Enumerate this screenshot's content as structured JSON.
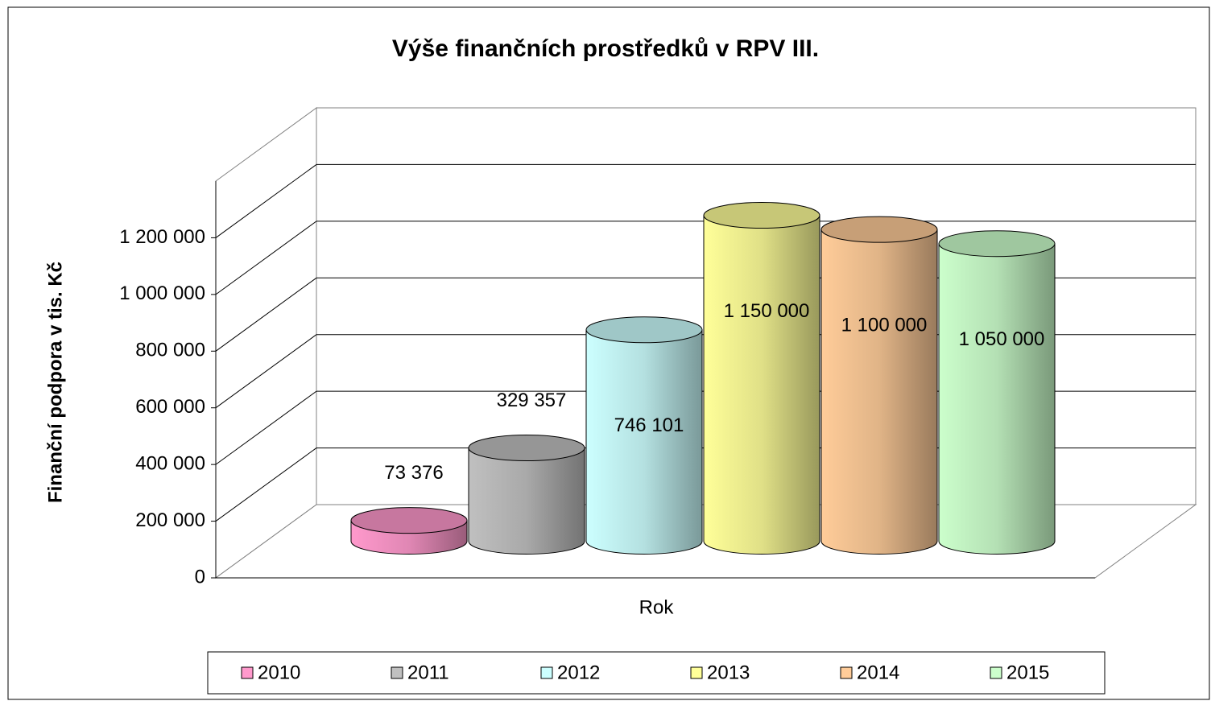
{
  "chart_data": {
    "type": "bar",
    "title": "Výše finančních prostředků  v RPV III.",
    "ylabel": "Finanční podpora v tis. Kč",
    "xlabel": "Rok",
    "ylim": [
      0,
      1400000
    ],
    "yticks": [
      0,
      {
        "value": 200000,
        "label": "200 000"
      },
      {
        "value": 400000,
        "label": "400 000"
      },
      {
        "value": 600000,
        "label": "600 000"
      },
      {
        "value": 800000,
        "label": "800 000"
      },
      {
        "value": 1000000,
        "label": "1 000 000"
      },
      {
        "value": 1200000,
        "label": "1 200 000"
      }
    ],
    "grid": true,
    "legend": "bottom",
    "series": [
      {
        "name": "2010",
        "color": "#ff99cc",
        "values": [
          73376
        ],
        "value_labels": [
          "73 376"
        ]
      },
      {
        "name": "2011",
        "color": "#c0c0c0",
        "values": [
          329357
        ],
        "value_labels": [
          "329 357"
        ]
      },
      {
        "name": "2012",
        "color": "#ccffff",
        "values": [
          746101
        ],
        "value_labels": [
          "746 101"
        ]
      },
      {
        "name": "2013",
        "color": "#ffff99",
        "values": [
          1150000
        ],
        "value_labels": [
          "1 150 000"
        ]
      },
      {
        "name": "2014",
        "color": "#ffcc99",
        "values": [
          1100000
        ],
        "value_labels": [
          "1 100 000"
        ]
      },
      {
        "name": "2015",
        "color": "#ccffcc",
        "values": [
          1050000
        ],
        "value_labels": [
          "1 050 000"
        ]
      }
    ]
  }
}
